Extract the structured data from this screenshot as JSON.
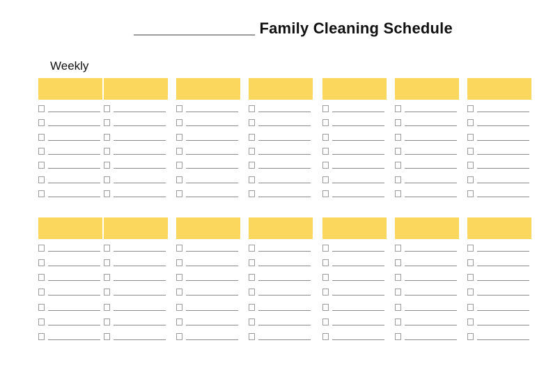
{
  "header": {
    "name_blank": "______________",
    "title": "Family Cleaning Schedule",
    "section_label": "Weekly"
  },
  "schedule": {
    "sections": 2,
    "columns_per_section": 7,
    "tasks_per_column": 7,
    "day_header_text": "",
    "task_text": ""
  },
  "colors": {
    "header_block": "#FBD75E",
    "task_line": "#8A8A8A",
    "checkbox_border": "#9B9B9B",
    "text": "#111111",
    "background": "#FFFFFF"
  }
}
